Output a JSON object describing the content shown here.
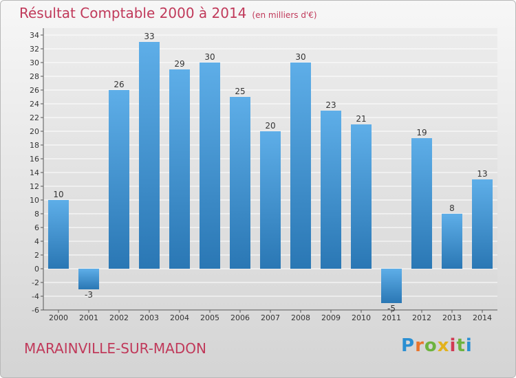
{
  "header": {
    "title": "Résultat Comptable 2000 à 2014",
    "subtitle": "(en milliers d'€)"
  },
  "footer": {
    "commune": "MARAINVILLE-SUR-MADON",
    "logo": {
      "text": "Proxiti",
      "letters": [
        "P",
        "r",
        "o",
        "x",
        "i",
        "t",
        "i"
      ],
      "letter_colors": [
        "#2a8fd2",
        "#e8742c",
        "#6db33f",
        "#e3b21c",
        "#d13a53",
        "#6db33f",
        "#2a8fd2"
      ]
    }
  },
  "chart_data": {
    "type": "bar",
    "title": "Résultat Comptable 2000 à 2014",
    "subtitle": "(en milliers d'€)",
    "categories": [
      "2000",
      "2001",
      "2002",
      "2003",
      "2004",
      "2005",
      "2006",
      "2007",
      "2008",
      "2009",
      "2010",
      "2011",
      "2012",
      "2013",
      "2014"
    ],
    "values": [
      10,
      -3,
      26,
      33,
      29,
      30,
      25,
      20,
      30,
      23,
      21,
      -5,
      19,
      8,
      13
    ],
    "ylim": [
      -6,
      34
    ],
    "yticks": [
      -6,
      -4,
      -2,
      0,
      2,
      4,
      6,
      8,
      10,
      12,
      14,
      16,
      18,
      20,
      22,
      24,
      26,
      28,
      30,
      32,
      34
    ],
    "grid": true,
    "bar_color_top": "#5eaee8",
    "bar_color_bottom": "#2a77b4",
    "text_color": "#333333"
  }
}
